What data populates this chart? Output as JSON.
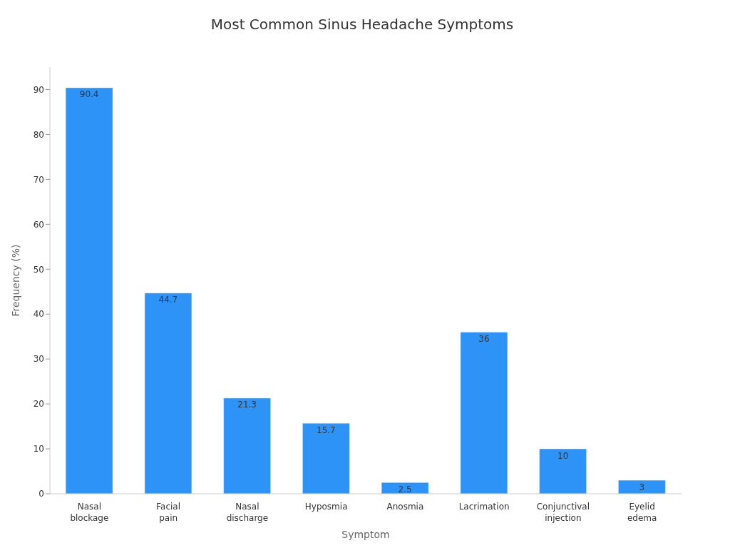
{
  "chart_data": {
    "type": "bar",
    "title": "Most Common Sinus Headache Symptoms",
    "xlabel": "Symptom",
    "ylabel": "Frequency (%)",
    "categories": [
      "Nasal blockage",
      "Facial pain",
      "Nasal discharge",
      "Hyposmia",
      "Anosmia",
      "Lacrimation",
      "Conjunctival injection",
      "Eyelid edema"
    ],
    "values": [
      90.4,
      44.7,
      21.3,
      15.7,
      2.5,
      36,
      10,
      3
    ],
    "color": "#2e93f7",
    "ylim": [
      0,
      95
    ],
    "yticks": [
      0,
      10,
      20,
      30,
      40,
      50,
      60,
      70,
      80,
      90
    ],
    "grid": false,
    "data_labels": true
  }
}
